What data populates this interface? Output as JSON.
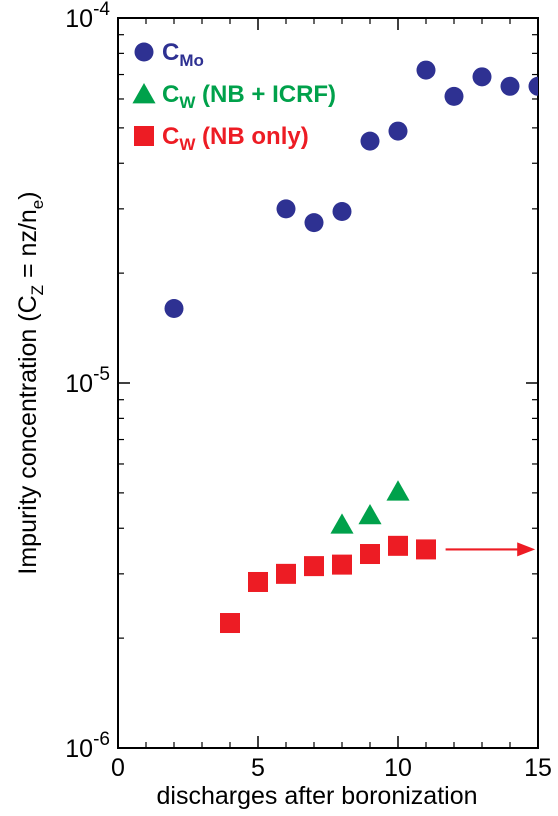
{
  "chart_data": {
    "type": "scatter",
    "xlabel": "discharges after boronization",
    "ylabel": {
      "main": "Impurity concentration (C",
      "sub": "Z",
      "tail": " = nz/n",
      "sub2": "e",
      "close": ")"
    },
    "xlim": [
      0,
      15
    ],
    "ylim": [
      1e-06,
      0.0001
    ],
    "y_scale": "log",
    "x_ticks": [
      0,
      5,
      10,
      15
    ],
    "x_tick_labels": [
      "0",
      "5",
      "10",
      "15"
    ],
    "y_ticks": [
      1e-06,
      1e-05,
      0.0001
    ],
    "y_tick_labels": [
      {
        "base": "10",
        "exp": "-6"
      },
      {
        "base": "10",
        "exp": "-5"
      },
      {
        "base": "10",
        "exp": "-4"
      }
    ],
    "legend_position": "top-left",
    "series": [
      {
        "name": "C",
        "name_sub": "Mo",
        "marker": "circle",
        "color": "#2e3192",
        "points": [
          [
            2,
            1.6e-05
          ],
          [
            6,
            3e-05
          ],
          [
            7,
            2.75e-05
          ],
          [
            8,
            2.95e-05
          ],
          [
            9,
            4.6e-05
          ],
          [
            10,
            4.9e-05
          ],
          [
            11,
            7.2e-05
          ],
          [
            12,
            6.1e-05
          ],
          [
            13,
            6.9e-05
          ],
          [
            14,
            6.5e-05
          ],
          [
            15,
            6.5e-05
          ]
        ]
      },
      {
        "name": "C",
        "name_sub": "W",
        "name_tail": " (NB + ICRF)",
        "marker": "triangle",
        "color": "#00a14b",
        "points": [
          [
            8,
            4.1e-06
          ],
          [
            9,
            4.35e-06
          ],
          [
            10,
            5.05e-06
          ]
        ]
      },
      {
        "name": "C",
        "name_sub": "W",
        "name_tail": " (NB only)",
        "marker": "square",
        "color": "#ed1c24",
        "points": [
          [
            4,
            2.2e-06
          ],
          [
            5,
            2.85e-06
          ],
          [
            6,
            3e-06
          ],
          [
            7,
            3.15e-06
          ],
          [
            8,
            3.18e-06
          ],
          [
            9,
            3.4e-06
          ],
          [
            10,
            3.58e-06
          ],
          [
            11,
            3.5e-06
          ]
        ]
      }
    ],
    "annotations": [
      {
        "type": "arrow",
        "color": "#ed1c24",
        "from": [
          11.7,
          3.5e-06
        ],
        "to": [
          14.9,
          3.5e-06
        ]
      }
    ]
  }
}
